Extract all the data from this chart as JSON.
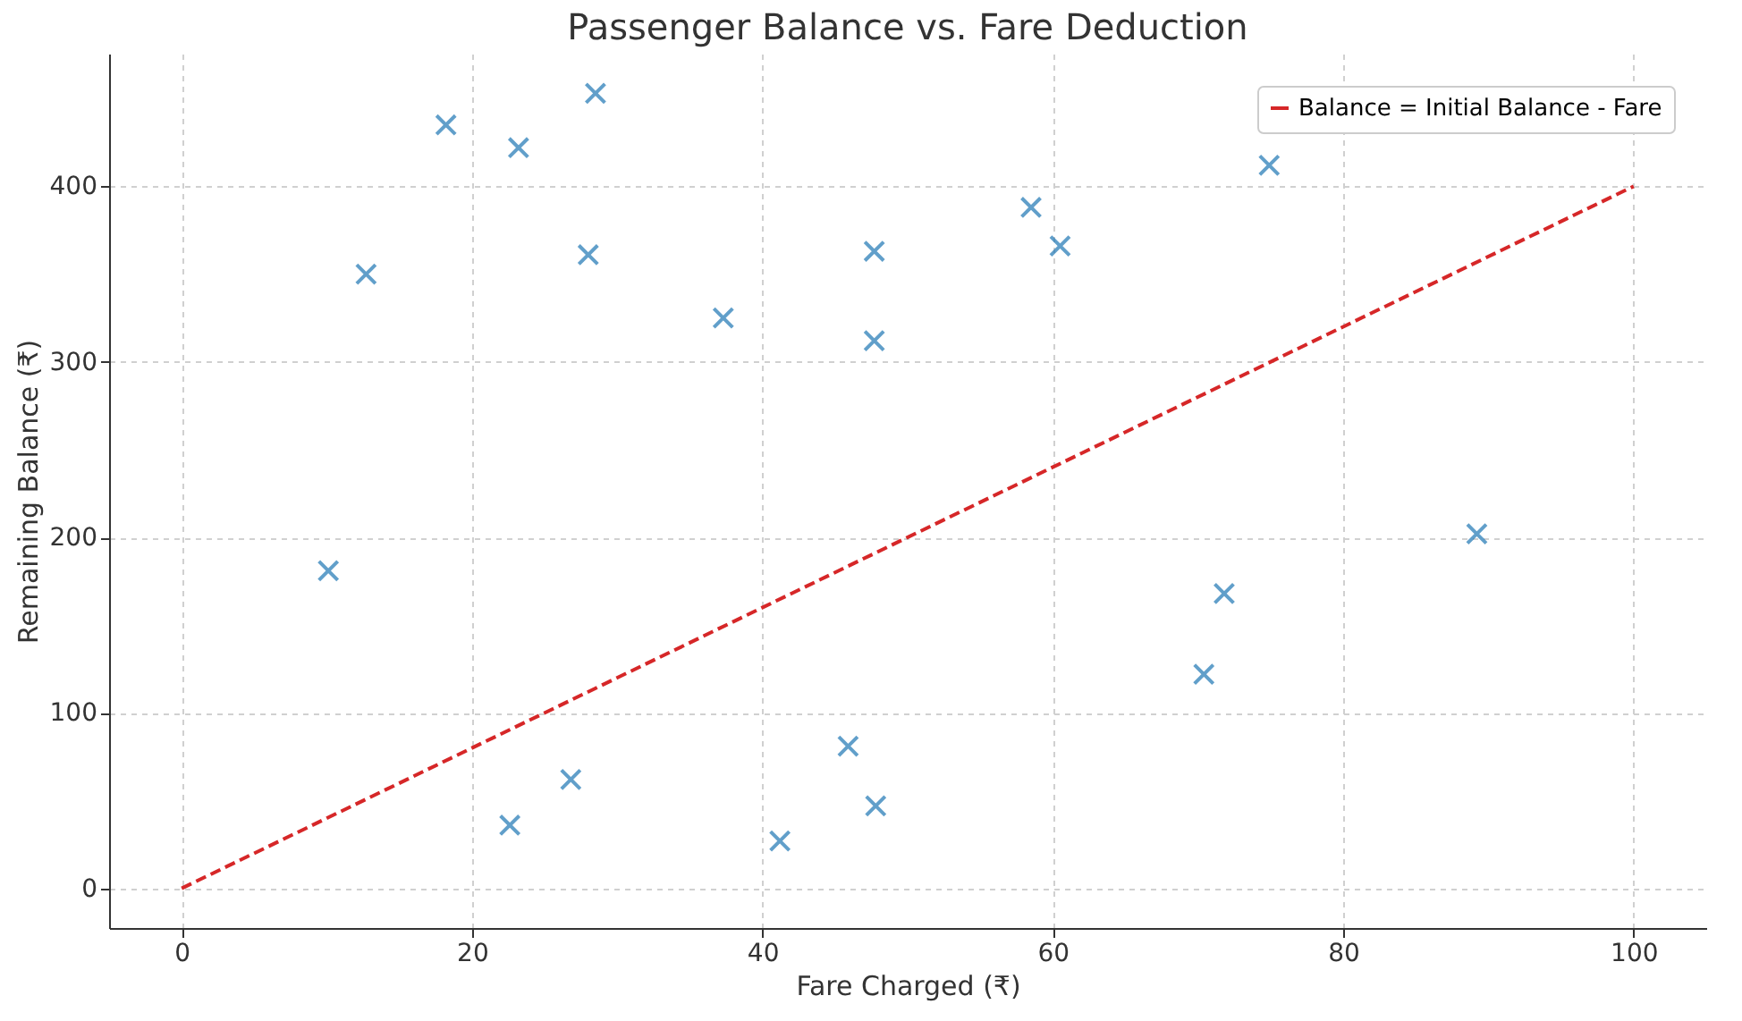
{
  "chart_data": {
    "type": "scatter",
    "title": "Passenger Balance vs. Fare Deduction",
    "xlabel": "Fare Charged (₹)",
    "ylabel": "Remaining Balance (₹)",
    "xlim": [
      -5,
      105
    ],
    "ylim": [
      -22.6,
      475.6
    ],
    "xticks": [
      0,
      20,
      40,
      60,
      80,
      100
    ],
    "yticks": [
      0,
      100,
      200,
      300,
      400
    ],
    "grid": true,
    "legend": "top right",
    "series": [
      {
        "marker": "cross",
        "color": "#1f77b4",
        "x": [
          10.1,
          12.7,
          18.2,
          23.2,
          28.5,
          28.0,
          37.3,
          47.7,
          47.7,
          58.5,
          60.5,
          74.9,
          89.2,
          71.8,
          70.4,
          45.9,
          47.8,
          41.2,
          26.8,
          22.6
        ],
        "values": [
          181,
          350,
          435,
          422,
          453,
          361,
          325,
          363,
          312,
          388,
          366,
          412,
          202,
          168,
          122,
          81,
          47,
          27,
          62,
          36
        ]
      },
      {
        "type": "line",
        "line_style": "dashed",
        "marker": "none",
        "name": "Balance = Initial Balance - Fare",
        "color": "#d62728",
        "x": [
          0,
          100
        ],
        "values": [
          0,
          400
        ]
      }
    ]
  }
}
